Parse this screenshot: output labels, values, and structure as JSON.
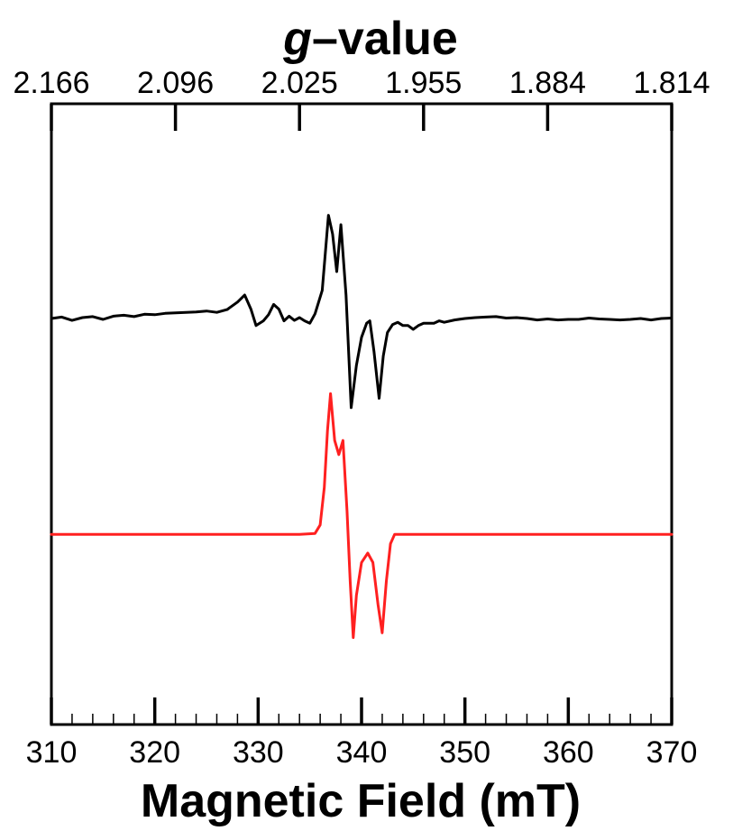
{
  "chart_data": {
    "type": "line",
    "title": "",
    "xlabel": "Magnetic Field (mT)",
    "x2label_italic": "g",
    "x2label_rest": "–value",
    "xlim": [
      310,
      370
    ],
    "x_ticks": [
      310,
      320,
      330,
      340,
      350,
      360,
      370
    ],
    "x_tick_labels": [
      "310",
      "320",
      "330",
      "340",
      "350",
      "360",
      "370"
    ],
    "x_minor_step": 2,
    "top_axis": {
      "ticks_mT": [
        310,
        322,
        334,
        346,
        358,
        370
      ],
      "tick_labels": [
        "2.166",
        "2.096",
        "2.025",
        "1.955",
        "1.884",
        "1.814"
      ]
    },
    "y_axis_labels": false,
    "grid": false,
    "legend": "none",
    "series": [
      {
        "role": "experimental",
        "color": "#000000",
        "baseline": 0,
        "points": [
          [
            310,
            0.0
          ],
          [
            311,
            0.3
          ],
          [
            312,
            -0.4
          ],
          [
            313,
            0.2
          ],
          [
            314,
            0.4
          ],
          [
            315,
            -0.2
          ],
          [
            316,
            0.5
          ],
          [
            317,
            0.7
          ],
          [
            318,
            0.4
          ],
          [
            319,
            0.9
          ],
          [
            320,
            0.8
          ],
          [
            321,
            1.1
          ],
          [
            322,
            1.2
          ],
          [
            323,
            1.3
          ],
          [
            324,
            1.4
          ],
          [
            325,
            1.6
          ],
          [
            326,
            1.3
          ],
          [
            327,
            1.9
          ],
          [
            328,
            3.5
          ],
          [
            328.7,
            5.0
          ],
          [
            329.3,
            2.0
          ],
          [
            329.8,
            -1.5
          ],
          [
            330.5,
            -0.5
          ],
          [
            331,
            0.8
          ],
          [
            331.5,
            3.0
          ],
          [
            332,
            2.0
          ],
          [
            332.5,
            -0.5
          ],
          [
            333,
            0.5
          ],
          [
            333.5,
            -0.4
          ],
          [
            334,
            0.2
          ],
          [
            334.5,
            -0.5
          ],
          [
            335,
            -1.0
          ],
          [
            335.5,
            1.0
          ],
          [
            336.2,
            6.0
          ],
          [
            336.8,
            22.0
          ],
          [
            337.2,
            18.0
          ],
          [
            337.6,
            10.0
          ],
          [
            338.0,
            20.0
          ],
          [
            338.5,
            5.0
          ],
          [
            339.0,
            -19.0
          ],
          [
            339.5,
            -10.0
          ],
          [
            340.0,
            -4.0
          ],
          [
            340.5,
            -1.0
          ],
          [
            340.8,
            -0.5
          ],
          [
            341.2,
            -7.0
          ],
          [
            341.7,
            -17.0
          ],
          [
            342.1,
            -8.0
          ],
          [
            342.5,
            -3.0
          ],
          [
            343.0,
            -1.3
          ],
          [
            343.5,
            -0.8
          ],
          [
            344.0,
            -1.5
          ],
          [
            344.5,
            -1.5
          ],
          [
            345.0,
            -2.3
          ],
          [
            345.5,
            -1.5
          ],
          [
            346.0,
            -1.0
          ],
          [
            347,
            -1.0
          ],
          [
            347.5,
            -0.5
          ],
          [
            348,
            -0.8
          ],
          [
            349,
            -0.3
          ],
          [
            350,
            0.0
          ],
          [
            351,
            0.2
          ],
          [
            352,
            0.3
          ],
          [
            353,
            0.4
          ],
          [
            354,
            0.1
          ],
          [
            355,
            0.2
          ],
          [
            356,
            0.0
          ],
          [
            357,
            -0.3
          ],
          [
            358,
            -0.1
          ],
          [
            359,
            -0.3
          ],
          [
            360,
            -0.2
          ],
          [
            361,
            -0.2
          ],
          [
            362,
            0.1
          ],
          [
            363,
            -0.1
          ],
          [
            364,
            -0.2
          ],
          [
            365,
            -0.3
          ],
          [
            366,
            -0.2
          ],
          [
            367,
            0.0
          ],
          [
            368,
            -0.3
          ],
          [
            369,
            0.0
          ],
          [
            370,
            0.1
          ]
        ]
      },
      {
        "role": "simulated",
        "color": "#ff2020",
        "baseline": -46,
        "points": [
          [
            310,
            0
          ],
          [
            334,
            0
          ],
          [
            335.5,
            0.2
          ],
          [
            336.0,
            2.0
          ],
          [
            336.4,
            10.0
          ],
          [
            336.7,
            22.0
          ],
          [
            337.0,
            30.0
          ],
          [
            337.4,
            20.0
          ],
          [
            337.8,
            17.0
          ],
          [
            338.2,
            20.0
          ],
          [
            338.6,
            5.0
          ],
          [
            338.9,
            -10.0
          ],
          [
            339.2,
            -22.0
          ],
          [
            339.5,
            -13.0
          ],
          [
            340.0,
            -6.0
          ],
          [
            340.6,
            -4.0
          ],
          [
            341.1,
            -6.0
          ],
          [
            341.6,
            -15.0
          ],
          [
            342.0,
            -21.0
          ],
          [
            342.4,
            -10.0
          ],
          [
            342.8,
            -2.0
          ],
          [
            343.2,
            0.0
          ],
          [
            370,
            0
          ]
        ]
      }
    ]
  }
}
